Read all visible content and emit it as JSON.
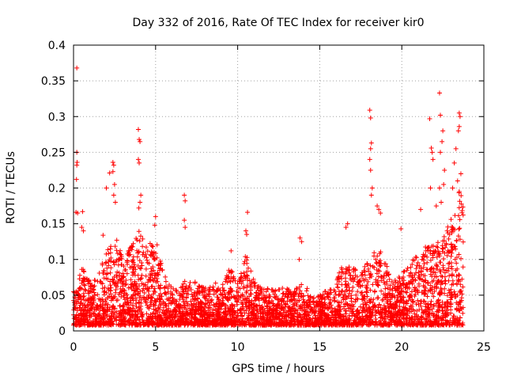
{
  "chart_data": {
    "type": "scatter",
    "title": "Day 332 of 2016, Rate Of TEC Index for receiver kir0",
    "xlabel": "GPS time / hours",
    "ylabel": "ROTI / TECUs",
    "xlim": [
      0,
      25
    ],
    "ylim": [
      0,
      0.4
    ],
    "xticks": [
      0,
      5,
      10,
      15,
      20,
      25
    ],
    "yticks": [
      0,
      0.05,
      0.1,
      0.15,
      0.2,
      0.25,
      0.3,
      0.35,
      0.4
    ],
    "xtick_labels": [
      "0",
      "5",
      "10",
      "15",
      "20",
      "25"
    ],
    "ytick_labels": [
      "0",
      "0.05",
      "0.1",
      "0.15",
      "0.2",
      "0.25",
      "0.3",
      "0.35",
      "0.4"
    ],
    "grid": true,
    "marker": "+",
    "series_color": "#ff0000",
    "data_gap_hours": [
      7.0,
      7.05
    ],
    "data_end_hour": 23.75,
    "series": [
      {
        "name": "ROTI",
        "outlier_points": [
          {
            "x": 0.2,
            "y": 0.368
          },
          {
            "x": 0.2,
            "y": 0.25
          },
          {
            "x": 0.22,
            "y": 0.236
          },
          {
            "x": 0.2,
            "y": 0.232
          },
          {
            "x": 0.18,
            "y": 0.212
          },
          {
            "x": 0.15,
            "y": 0.166
          },
          {
            "x": 0.25,
            "y": 0.165
          },
          {
            "x": 0.55,
            "y": 0.167
          },
          {
            "x": 0.5,
            "y": 0.145
          },
          {
            "x": 0.6,
            "y": 0.14
          },
          {
            "x": 1.8,
            "y": 0.134
          },
          {
            "x": 2.2,
            "y": 0.221
          },
          {
            "x": 2.4,
            "y": 0.236
          },
          {
            "x": 2.45,
            "y": 0.232
          },
          {
            "x": 2.4,
            "y": 0.223
          },
          {
            "x": 2.5,
            "y": 0.205
          },
          {
            "x": 2.45,
            "y": 0.19
          },
          {
            "x": 2.55,
            "y": 0.18
          },
          {
            "x": 2.0,
            "y": 0.2
          },
          {
            "x": 3.95,
            "y": 0.282
          },
          {
            "x": 4.0,
            "y": 0.268
          },
          {
            "x": 4.05,
            "y": 0.265
          },
          {
            "x": 3.95,
            "y": 0.24
          },
          {
            "x": 4.0,
            "y": 0.235
          },
          {
            "x": 4.1,
            "y": 0.19
          },
          {
            "x": 4.05,
            "y": 0.18
          },
          {
            "x": 3.98,
            "y": 0.172
          },
          {
            "x": 5.0,
            "y": 0.16
          },
          {
            "x": 4.95,
            "y": 0.148
          },
          {
            "x": 6.75,
            "y": 0.19
          },
          {
            "x": 6.8,
            "y": 0.182
          },
          {
            "x": 6.75,
            "y": 0.155
          },
          {
            "x": 6.8,
            "y": 0.145
          },
          {
            "x": 10.6,
            "y": 0.166
          },
          {
            "x": 10.5,
            "y": 0.14
          },
          {
            "x": 10.55,
            "y": 0.135
          },
          {
            "x": 9.6,
            "y": 0.112
          },
          {
            "x": 13.8,
            "y": 0.13
          },
          {
            "x": 13.9,
            "y": 0.125
          },
          {
            "x": 13.75,
            "y": 0.1
          },
          {
            "x": 16.6,
            "y": 0.145
          },
          {
            "x": 16.7,
            "y": 0.15
          },
          {
            "x": 18.05,
            "y": 0.309
          },
          {
            "x": 18.1,
            "y": 0.298
          },
          {
            "x": 18.15,
            "y": 0.263
          },
          {
            "x": 18.1,
            "y": 0.255
          },
          {
            "x": 18.05,
            "y": 0.24
          },
          {
            "x": 18.1,
            "y": 0.225
          },
          {
            "x": 18.2,
            "y": 0.2
          },
          {
            "x": 18.15,
            "y": 0.19
          },
          {
            "x": 18.5,
            "y": 0.175
          },
          {
            "x": 18.6,
            "y": 0.17
          },
          {
            "x": 18.7,
            "y": 0.165
          },
          {
            "x": 19.95,
            "y": 0.143
          },
          {
            "x": 21.15,
            "y": 0.17
          },
          {
            "x": 21.7,
            "y": 0.297
          },
          {
            "x": 21.8,
            "y": 0.256
          },
          {
            "x": 21.85,
            "y": 0.25
          },
          {
            "x": 21.9,
            "y": 0.24
          },
          {
            "x": 21.75,
            "y": 0.2
          },
          {
            "x": 22.3,
            "y": 0.333
          },
          {
            "x": 22.35,
            "y": 0.302
          },
          {
            "x": 22.5,
            "y": 0.28
          },
          {
            "x": 22.45,
            "y": 0.265
          },
          {
            "x": 22.35,
            "y": 0.25
          },
          {
            "x": 22.6,
            "y": 0.225
          },
          {
            "x": 22.3,
            "y": 0.2
          },
          {
            "x": 22.55,
            "y": 0.205
          },
          {
            "x": 22.1,
            "y": 0.175
          },
          {
            "x": 22.4,
            "y": 0.18
          },
          {
            "x": 23.5,
            "y": 0.305
          },
          {
            "x": 23.55,
            "y": 0.3
          },
          {
            "x": 23.5,
            "y": 0.286
          },
          {
            "x": 23.45,
            "y": 0.28
          },
          {
            "x": 23.3,
            "y": 0.255
          },
          {
            "x": 23.2,
            "y": 0.235
          },
          {
            "x": 23.6,
            "y": 0.22
          },
          {
            "x": 23.4,
            "y": 0.21
          },
          {
            "x": 23.1,
            "y": 0.2
          },
          {
            "x": 23.5,
            "y": 0.195
          }
        ],
        "dense_envelope": [
          {
            "x": 0.0,
            "top": 0.06
          },
          {
            "x": 0.5,
            "top": 0.09
          },
          {
            "x": 1.0,
            "top": 0.07
          },
          {
            "x": 1.5,
            "top": 0.08
          },
          {
            "x": 2.0,
            "top": 0.11
          },
          {
            "x": 2.5,
            "top": 0.14
          },
          {
            "x": 3.0,
            "top": 0.1
          },
          {
            "x": 3.5,
            "top": 0.12
          },
          {
            "x": 4.0,
            "top": 0.14
          },
          {
            "x": 4.5,
            "top": 0.12
          },
          {
            "x": 5.0,
            "top": 0.13
          },
          {
            "x": 5.5,
            "top": 0.08
          },
          {
            "x": 6.0,
            "top": 0.06
          },
          {
            "x": 6.5,
            "top": 0.06
          },
          {
            "x": 7.0,
            "top": 0.08
          },
          {
            "x": 7.5,
            "top": 0.07
          },
          {
            "x": 8.0,
            "top": 0.06
          },
          {
            "x": 8.5,
            "top": 0.07
          },
          {
            "x": 9.0,
            "top": 0.06
          },
          {
            "x": 9.5,
            "top": 0.09
          },
          {
            "x": 10.0,
            "top": 0.07
          },
          {
            "x": 10.5,
            "top": 0.11
          },
          {
            "x": 11.0,
            "top": 0.07
          },
          {
            "x": 11.5,
            "top": 0.06
          },
          {
            "x": 12.0,
            "top": 0.06
          },
          {
            "x": 12.5,
            "top": 0.06
          },
          {
            "x": 13.0,
            "top": 0.06
          },
          {
            "x": 13.5,
            "top": 0.06
          },
          {
            "x": 14.0,
            "top": 0.07
          },
          {
            "x": 14.5,
            "top": 0.05
          },
          {
            "x": 15.0,
            "top": 0.05
          },
          {
            "x": 15.5,
            "top": 0.06
          },
          {
            "x": 16.0,
            "top": 0.07
          },
          {
            "x": 16.5,
            "top": 0.1
          },
          {
            "x": 17.0,
            "top": 0.09
          },
          {
            "x": 17.5,
            "top": 0.08
          },
          {
            "x": 18.0,
            "top": 0.1
          },
          {
            "x": 18.5,
            "top": 0.12
          },
          {
            "x": 19.0,
            "top": 0.1
          },
          {
            "x": 19.5,
            "top": 0.07
          },
          {
            "x": 20.0,
            "top": 0.08
          },
          {
            "x": 20.5,
            "top": 0.1
          },
          {
            "x": 21.0,
            "top": 0.11
          },
          {
            "x": 21.5,
            "top": 0.12
          },
          {
            "x": 22.0,
            "top": 0.12
          },
          {
            "x": 22.5,
            "top": 0.13
          },
          {
            "x": 23.0,
            "top": 0.16
          },
          {
            "x": 23.5,
            "top": 0.2
          },
          {
            "x": 23.75,
            "top": 0.18
          }
        ],
        "dense_floor": 0.008
      }
    ]
  }
}
